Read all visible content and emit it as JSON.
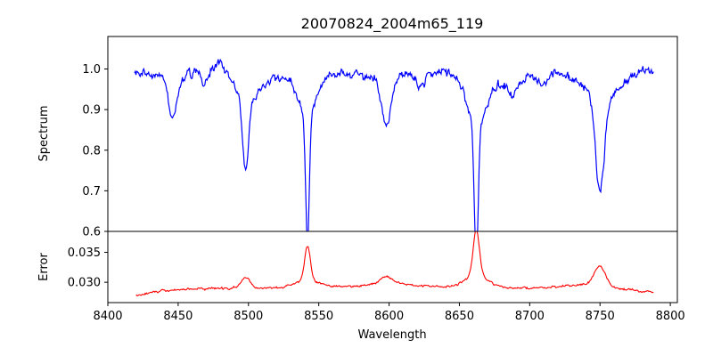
{
  "title": "20070824_2004m65_119",
  "chart_data": {
    "type": "line",
    "title": "20070824_2004m65_119",
    "xlabel": "Wavelength",
    "xlim": [
      8400,
      8805
    ],
    "xticks": [
      8400,
      8450,
      8500,
      8550,
      8600,
      8650,
      8700,
      8750,
      8800
    ],
    "colors": {
      "spectrum": "#0000ff",
      "error": "#ff0000"
    },
    "panels": [
      {
        "id": "spectrum",
        "ylabel": "Spectrum",
        "ylim": [
          0.6,
          1.08
        ],
        "yticks": [
          0.6,
          0.7,
          0.8,
          0.9,
          1.0
        ],
        "ytick_labels": [
          "0.6",
          "0.7",
          "0.8",
          "0.9",
          "1.0"
        ],
        "x_range": [
          8419,
          8788
        ],
        "continuum": [
          [
            8419,
            0.99
          ],
          [
            8450,
            0.98
          ],
          [
            8480,
            1.02
          ],
          [
            8500,
            0.97
          ],
          [
            8520,
            0.98
          ],
          [
            8560,
            0.99
          ],
          [
            8600,
            0.98
          ],
          [
            8640,
            1.0
          ],
          [
            8680,
            0.97
          ],
          [
            8720,
            0.99
          ],
          [
            8760,
            0.97
          ],
          [
            8788,
            1.0
          ]
        ],
        "features": [
          {
            "center": 8446,
            "depth": 0.1,
            "width": 3
          },
          {
            "center": 8469,
            "depth": 0.04,
            "width": 3
          },
          {
            "center": 8498,
            "depth": 0.17,
            "width": 2.2
          },
          {
            "center": 8498,
            "depth": 0.05,
            "width": 9
          },
          {
            "center": 8542,
            "depth": 0.3,
            "width": 1.3
          },
          {
            "center": 8542,
            "depth": 0.1,
            "width": 6
          },
          {
            "center": 8598,
            "depth": 0.12,
            "width": 3.5
          },
          {
            "center": 8622,
            "depth": 0.04,
            "width": 3
          },
          {
            "center": 8662,
            "depth": 0.33,
            "width": 1.4
          },
          {
            "center": 8662,
            "depth": 0.12,
            "width": 7
          },
          {
            "center": 8688,
            "depth": 0.05,
            "width": 3
          },
          {
            "center": 8750,
            "depth": 0.23,
            "width": 3
          },
          {
            "center": 8750,
            "depth": 0.05,
            "width": 10
          },
          {
            "center": 8710,
            "depth": 0.03,
            "width": 3
          }
        ],
        "noise": 0.022
      },
      {
        "id": "error",
        "ylabel": "Error",
        "ylim": [
          0.0266,
          0.0385
        ],
        "yticks": [
          0.03,
          0.035
        ],
        "ytick_labels": [
          "0.030",
          "0.035"
        ],
        "x_range": [
          8420,
          8788
        ],
        "baseline": [
          [
            8420,
            0.0277
          ],
          [
            8440,
            0.0287
          ],
          [
            8480,
            0.029
          ],
          [
            8520,
            0.0291
          ],
          [
            8560,
            0.0292
          ],
          [
            8600,
            0.0297
          ],
          [
            8640,
            0.0292
          ],
          [
            8700,
            0.029
          ],
          [
            8740,
            0.0296
          ],
          [
            8788,
            0.0283
          ]
        ],
        "features": [
          {
            "center": 8498,
            "height": 0.0018,
            "width": 3
          },
          {
            "center": 8542,
            "height": 0.0058,
            "width": 2
          },
          {
            "center": 8542,
            "height": 0.0012,
            "width": 8
          },
          {
            "center": 8598,
            "height": 0.0012,
            "width": 5
          },
          {
            "center": 8662,
            "height": 0.0075,
            "width": 2.2
          },
          {
            "center": 8662,
            "height": 0.002,
            "width": 8
          },
          {
            "center": 8750,
            "height": 0.0034,
            "width": 4
          }
        ],
        "noise": 0.00035
      }
    ]
  }
}
